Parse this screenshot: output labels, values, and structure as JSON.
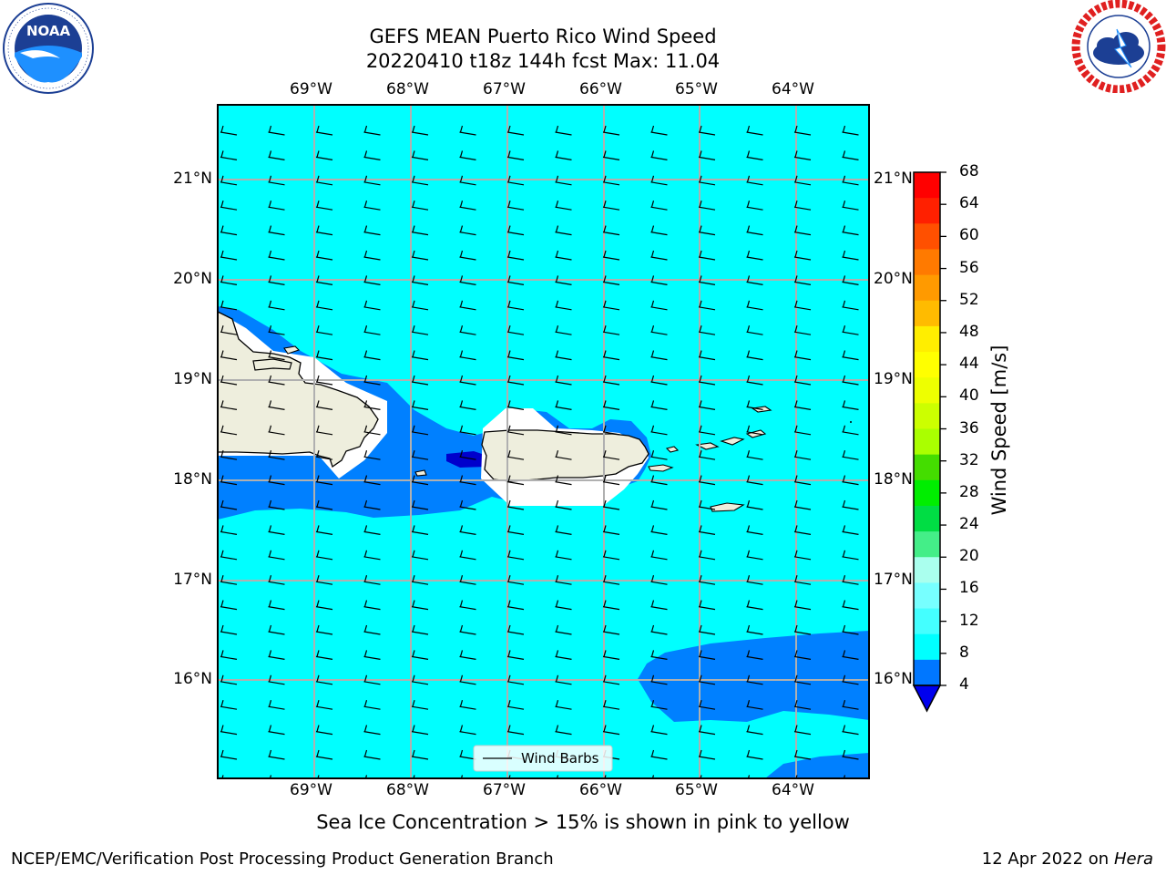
{
  "header": {
    "title_line1": "GEFS MEAN Puerto Rico Wind Speed",
    "title_line2": "20220410 t18z 144h fcst   Max: 11.04"
  },
  "logos": {
    "left": {
      "text": "NOAA",
      "ring_text": "NATIONAL OCEANIC AND ATMOSPHERIC ADMINISTRATION · U.S. DEPARTMENT OF COMMERCE"
    },
    "right": {
      "ring_text": "NATIONAL WEATHER SERVICE"
    }
  },
  "map": {
    "lon_labels": [
      "69°W",
      "68°W",
      "67°W",
      "66°W",
      "65°W",
      "64°W"
    ],
    "lat_labels": [
      "21°N",
      "20°N",
      "19°N",
      "18°N",
      "17°N",
      "16°N"
    ],
    "legend_label": "Wind Barbs",
    "colors": {
      "ocean": "#00ffff",
      "band_4_8": "#0080ff",
      "band_below_4": "#0000cc",
      "land": "#eeeedd",
      "grid": "#b0b0b0"
    }
  },
  "colorbar": {
    "label": "Wind Speed [m/s]",
    "ticks": [
      "68",
      "64",
      "60",
      "56",
      "52",
      "48",
      "44",
      "40",
      "36",
      "32",
      "28",
      "24",
      "20",
      "16",
      "12",
      "8",
      "4"
    ],
    "colors_top_to_bottom": [
      "#ff0000",
      "#ff2000",
      "#ff5000",
      "#ff7a00",
      "#ff9a00",
      "#ffbb00",
      "#ffee00",
      "#ffff00",
      "#eeff00",
      "#ccff00",
      "#aaff00",
      "#44dd00",
      "#00ee00",
      "#00dd44",
      "#44ee88",
      "#aaffee",
      "#77ffff",
      "#44ffff",
      "#00ffff",
      "#0077ff"
    ],
    "extend_color": "#0000ee"
  },
  "caption": "Sea Ice Concentration > 15% is shown in pink to yellow",
  "footer": {
    "left": "NCEP/EMC/Verification Post Processing Product Generation Branch",
    "date": "12 Apr 2022 on ",
    "machine": "Hera"
  }
}
